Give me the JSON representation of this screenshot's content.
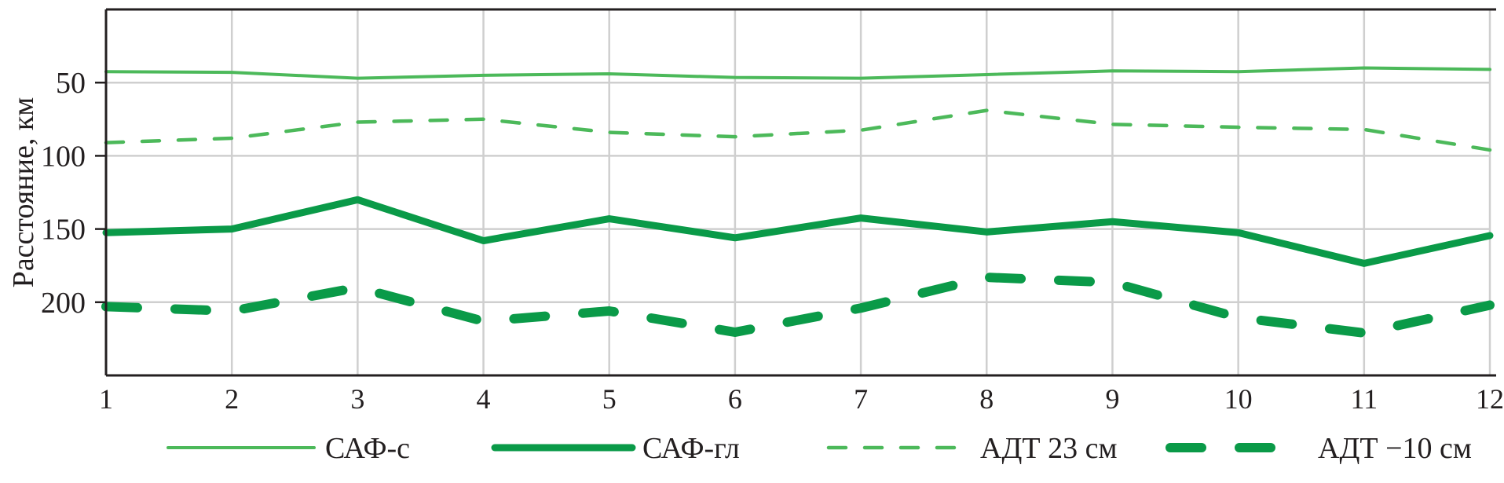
{
  "chart_data": {
    "type": "line",
    "title": "",
    "xlabel": "",
    "ylabel": "Расстояние, км",
    "x": [
      1,
      2,
      3,
      4,
      5,
      6,
      7,
      8,
      9,
      10,
      11,
      12
    ],
    "xlim": [
      1,
      12
    ],
    "ylim": [
      0,
      250
    ],
    "y_inverted": true,
    "yticks": [
      50,
      100,
      150,
      200
    ],
    "xticks": [
      1,
      2,
      3,
      4,
      5,
      6,
      7,
      8,
      9,
      10,
      11,
      12
    ],
    "grid": true,
    "legend_placement": "bottom",
    "series": [
      {
        "name": "САФ-с",
        "color": "#4cb95a",
        "style": "thin-solid",
        "values": [
          42.5,
          43,
          47,
          45,
          44,
          46.5,
          47,
          44.5,
          42,
          42.5,
          40,
          41
        ]
      },
      {
        "name": "САФ-гл",
        "color": "#0a9a48",
        "style": "thick-solid",
        "values": [
          152.5,
          150,
          130,
          158,
          143,
          156,
          142.5,
          152,
          145,
          152.5,
          173.5,
          154.5
        ]
      },
      {
        "name": "АДТ 23 см",
        "color": "#4cb95a",
        "style": "thin-dashed",
        "values": [
          91,
          88,
          77,
          75,
          84,
          87,
          82.5,
          69,
          78.5,
          80.5,
          82,
          96
        ]
      },
      {
        "name": "АДТ −10 см",
        "color": "#0a9a48",
        "style": "thick-dashed",
        "values": [
          203,
          206,
          190,
          213,
          206,
          220.5,
          204,
          183,
          186.5,
          210.5,
          221,
          202
        ]
      }
    ]
  }
}
